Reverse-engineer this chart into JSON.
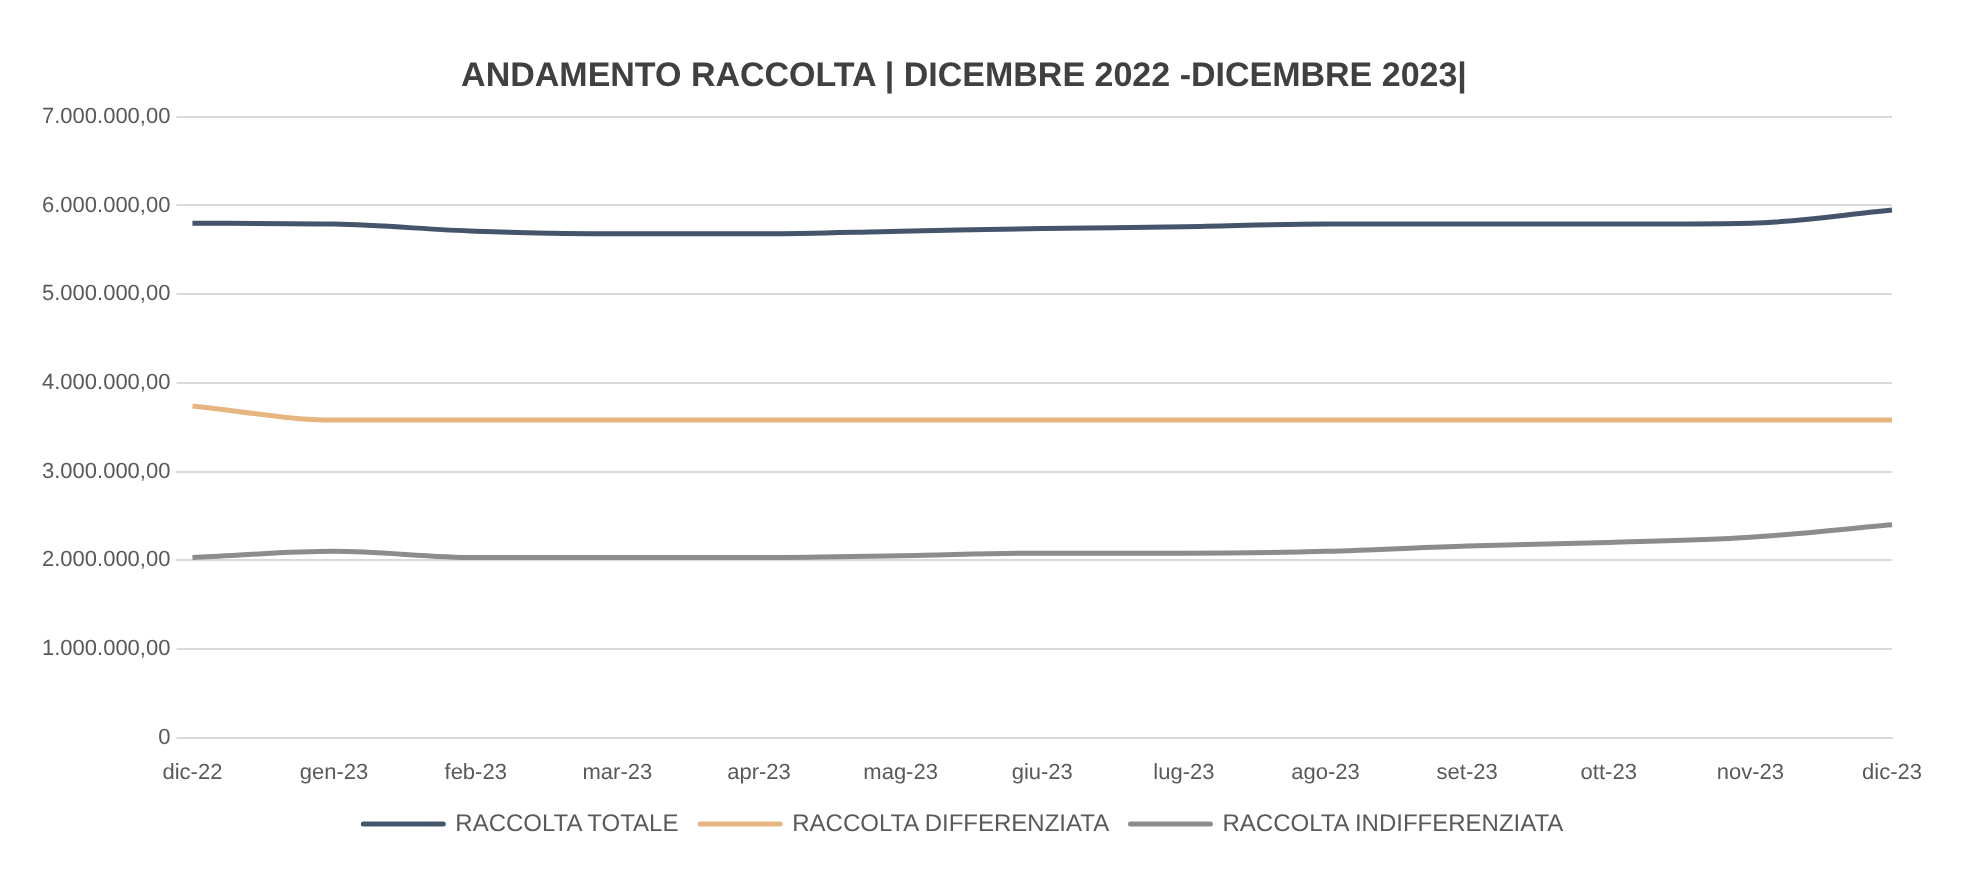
{
  "chart_data": {
    "type": "line",
    "title": "ANDAMENTO RACCOLTA | DICEMBRE 2022 -DICEMBRE 2023|",
    "categories": [
      "dic-22",
      "gen-23",
      "feb-23",
      "mar-23",
      "apr-23",
      "mag-23",
      "giu-23",
      "lug-23",
      "ago-23",
      "set-23",
      "ott-23",
      "nov-23",
      "dic-23"
    ],
    "series": [
      {
        "name": "RACCOLTA TOTALE",
        "color": "#44546a",
        "values": [
          5800000,
          5790000,
          5710000,
          5680000,
          5680000,
          5710000,
          5740000,
          5760000,
          5790000,
          5790000,
          5790000,
          5800000,
          5950000
        ]
      },
      {
        "name": "RACCOLTA DIFFERENZIATA",
        "color": "#e7b57f",
        "values": [
          3740000,
          3580000,
          3580000,
          3580000,
          3580000,
          3580000,
          3580000,
          3580000,
          3580000,
          3580000,
          3580000,
          3580000,
          3580000
        ]
      },
      {
        "name": "RACCOLTA INDIFFERENZIATA",
        "color": "#8c8c8c",
        "values": [
          2030000,
          2100000,
          2030000,
          2030000,
          2030000,
          2050000,
          2080000,
          2080000,
          2100000,
          2160000,
          2200000,
          2260000,
          2400000
        ]
      }
    ],
    "ylim": [
      0,
      7000000
    ],
    "yticks": [
      {
        "value": 0,
        "label": "0"
      },
      {
        "value": 1000000,
        "label": "1.000.000,00"
      },
      {
        "value": 2000000,
        "label": "2.000.000,00"
      },
      {
        "value": 3000000,
        "label": "3.000.000,00"
      },
      {
        "value": 4000000,
        "label": "4.000.000,00"
      },
      {
        "value": 5000000,
        "label": "5.000.000,00"
      },
      {
        "value": 6000000,
        "label": "6.000.000,00"
      },
      {
        "value": 7000000,
        "label": "7.000.000,00"
      }
    ],
    "grid": "y",
    "legend": "bottom",
    "marker": "none",
    "line_style": "solid"
  }
}
